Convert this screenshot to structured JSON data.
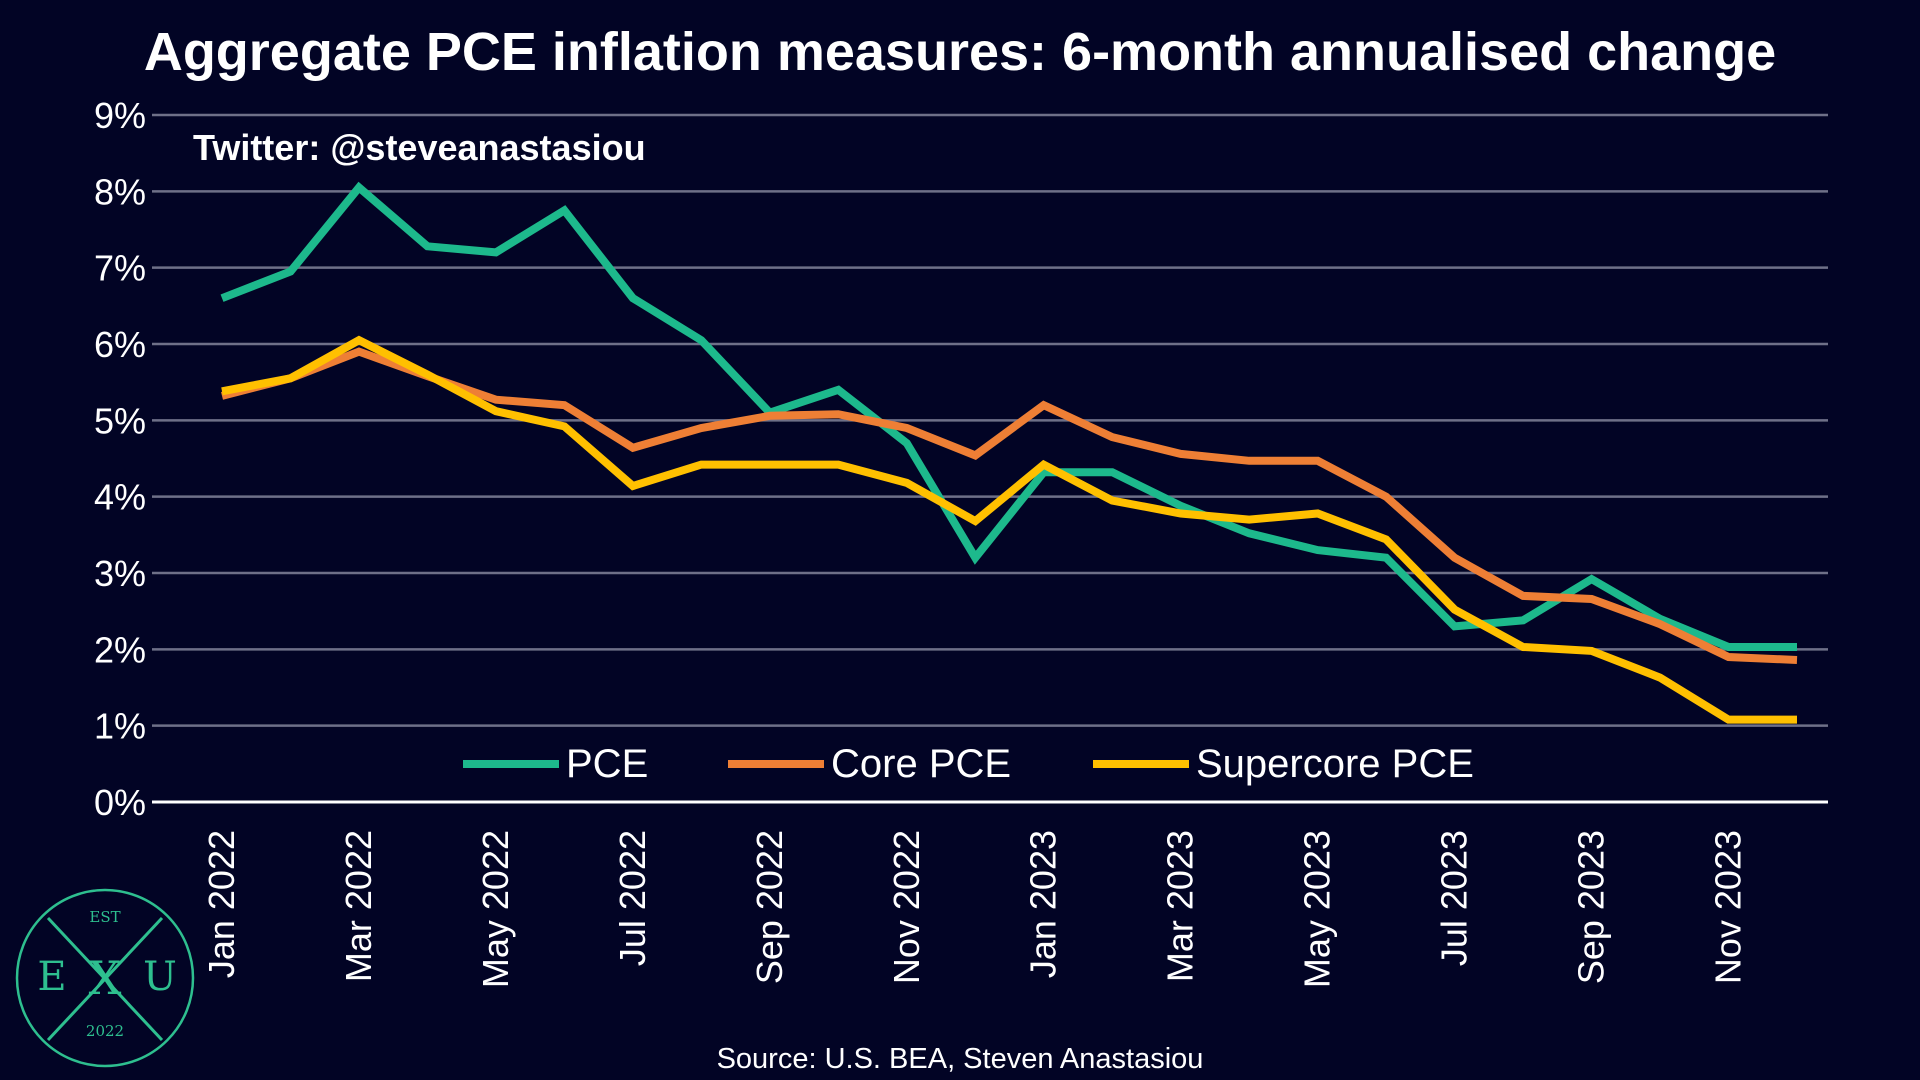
{
  "header": {
    "title": "Aggregate PCE inflation measures: 6-month annualised change",
    "handle": "Twitter: @steveanastasiou"
  },
  "footer": {
    "source": "Source: U.S. BEA, Steven Anastasiou"
  },
  "logo": {
    "top_text": "EST",
    "left_letter": "E",
    "center_letter": "X",
    "right_letter": "U",
    "bottom_text": "2022",
    "color": "#2EBF8F"
  },
  "colors": {
    "background": "#020425",
    "grid": "#6e7088",
    "axis": "#ffffff",
    "text": "#ffffff"
  },
  "chart_data": {
    "type": "line",
    "title": "Aggregate PCE inflation measures: 6-month annualised change",
    "xlabel": "",
    "ylabel": "",
    "ylim": [
      0,
      9
    ],
    "y_ticks": [
      "0%",
      "1%",
      "2%",
      "3%",
      "4%",
      "5%",
      "6%",
      "7%",
      "8%",
      "9%"
    ],
    "grid": true,
    "legend_position": "bottom-center",
    "x_tick_labels": [
      "Jan 2022",
      "Mar 2022",
      "May 2022",
      "Jul 2022",
      "Sep 2022",
      "Nov 2022",
      "Jan 2023",
      "Mar 2023",
      "May 2023",
      "Jul 2023",
      "Sep 2023",
      "Nov 2023"
    ],
    "x": [
      "Jan 2022",
      "Feb 2022",
      "Mar 2022",
      "Apr 2022",
      "May 2022",
      "Jun 2022",
      "Jul 2022",
      "Aug 2022",
      "Sep 2022",
      "Oct 2022",
      "Nov 2022",
      "Dec 2022",
      "Jan 2023",
      "Feb 2023",
      "Mar 2023",
      "Apr 2023",
      "May 2023",
      "Jun 2023",
      "Jul 2023",
      "Aug 2023",
      "Sep 2023",
      "Oct 2023",
      "Nov 2023",
      "Dec 2023"
    ],
    "series": [
      {
        "name": "PCE",
        "color": "#1DB98C",
        "values": [
          6.6,
          6.95,
          8.05,
          7.28,
          7.2,
          7.75,
          6.6,
          6.05,
          5.1,
          5.4,
          4.7,
          3.2,
          4.32,
          4.32,
          3.88,
          3.52,
          3.3,
          3.2,
          2.3,
          2.38,
          2.92,
          2.4,
          2.03,
          2.03
        ]
      },
      {
        "name": "Core PCE",
        "color": "#EE7F35",
        "values": [
          5.32,
          5.55,
          5.9,
          5.58,
          5.27,
          5.2,
          4.64,
          4.9,
          5.06,
          5.08,
          4.9,
          4.54,
          5.2,
          4.78,
          4.56,
          4.47,
          4.47,
          4.0,
          3.2,
          2.7,
          2.66,
          2.33,
          1.9,
          1.86
        ]
      },
      {
        "name": "Supercore PCE",
        "color": "#FFC000",
        "values": [
          5.38,
          5.55,
          6.05,
          5.6,
          5.12,
          4.92,
          4.14,
          4.42,
          4.42,
          4.42,
          4.18,
          3.68,
          4.42,
          3.95,
          3.78,
          3.7,
          3.78,
          3.44,
          2.52,
          2.03,
          1.98,
          1.63,
          1.08,
          1.08
        ]
      }
    ]
  }
}
